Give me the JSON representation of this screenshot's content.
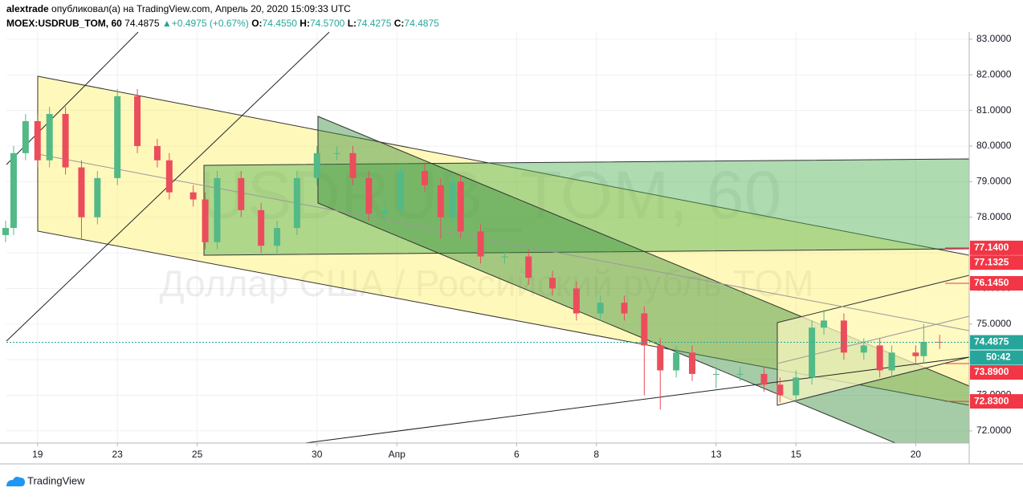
{
  "header": {
    "user": "alextrade",
    "published": "опубликовал(а) на TradingView.com, Апрель 20, 2020 15:09:33 UTC",
    "symbol": "MOEX:USDRUB_TOM, 60",
    "last": "74.4875",
    "arrow": "▲",
    "change": "+0.4975 (+0.67%)",
    "ohlc": [
      {
        "key": "O:",
        "value": "74.4550"
      },
      {
        "key": "H:",
        "value": "74.5700"
      },
      {
        "key": "L:",
        "value": "74.4275"
      },
      {
        "key": "C:",
        "value": "74.4875"
      }
    ]
  },
  "chart_data": {
    "type": "candlestick",
    "watermark": [
      "USDRUB_TOM, 60",
      "Доллар США / Российский рубль TOM"
    ],
    "up_color": "#53b987",
    "down_color": "#eb4d5c",
    "grid": true,
    "xlim": [
      -0.78,
      23.34
    ],
    "ylim": [
      71.66,
      83.2
    ],
    "xticks": [
      {
        "value": 0,
        "label": "19"
      },
      {
        "value": 2,
        "label": "23"
      },
      {
        "value": 4,
        "label": "25"
      },
      {
        "value": 7,
        "label": "30"
      },
      {
        "value": 9,
        "label": "Апр"
      },
      {
        "value": 12,
        "label": "6"
      },
      {
        "value": 14,
        "label": "8"
      },
      {
        "value": 17,
        "label": "13"
      },
      {
        "value": 19,
        "label": "15"
      },
      {
        "value": 22,
        "label": "20"
      }
    ],
    "yticks": [
      {
        "value": 72,
        "label": "72.0000"
      },
      {
        "value": 73,
        "label": "73.0000"
      },
      {
        "value": 74,
        "label": "74.0000"
      },
      {
        "value": 75,
        "label": "75.0000"
      },
      {
        "value": 76,
        "label": "76.0000"
      },
      {
        "value": 77,
        "label": "77.0000"
      },
      {
        "value": 78,
        "label": "78.0000"
      },
      {
        "value": 79,
        "label": "79.0000"
      },
      {
        "value": 80,
        "label": "80.0000"
      },
      {
        "value": 81,
        "label": "81.0000"
      },
      {
        "value": 82,
        "label": "82.0000"
      },
      {
        "value": 83,
        "label": "83.0000"
      }
    ],
    "x": [
      -0.8,
      -0.6,
      -0.3,
      0,
      0.3,
      0.7,
      1.1,
      1.5,
      2.0,
      2.5,
      3.0,
      3.3,
      3.9,
      4.2,
      4.5,
      5.1,
      5.6,
      6.0,
      6.5,
      7.0,
      7.5,
      7.9,
      8.3,
      8.7,
      9.1,
      9.7,
      10.1,
      10.4,
      10.6,
      11.1,
      11.7,
      12.3,
      12.9,
      13.5,
      14.1,
      14.7,
      15.2,
      15.6,
      16.0,
      16.4,
      17.0,
      17.6,
      18.2,
      18.6,
      19.0,
      19.4,
      19.7,
      20.2,
      20.7,
      21.1,
      21.4,
      22.0,
      22.2,
      22.6
    ],
    "open": [
      77.5,
      77.7,
      79.8,
      80.7,
      79.6,
      80.9,
      79.4,
      78.0,
      79.1,
      81.4,
      80.0,
      79.6,
      78.7,
      78.5,
      77.3,
      79.1,
      78.2,
      77.2,
      77.7,
      79.1,
      79.8,
      79.8,
      79.1,
      78.1,
      78.2,
      79.3,
      78.9,
      78.0,
      79.0,
      77.6,
      76.9,
      76.9,
      76.3,
      76.0,
      75.3,
      75.6,
      75.3,
      74.4,
      73.7,
      74.2,
      73.6,
      73.6,
      73.6,
      73.3,
      73.0,
      73.5,
      74.9,
      75.1,
      74.2,
      74.4,
      73.7,
      74.2,
      74.1,
      74.5
    ],
    "high": [
      77.9,
      80.0,
      80.9,
      80.9,
      81.1,
      81.1,
      79.6,
      79.3,
      81.6,
      81.6,
      80.2,
      79.8,
      78.9,
      78.7,
      79.3,
      79.3,
      78.4,
      77.9,
      79.3,
      80.0,
      80.0,
      80.0,
      79.3,
      78.4,
      79.5,
      79.5,
      79.1,
      79.2,
      79.2,
      77.8,
      77.1,
      77.1,
      76.5,
      76.2,
      75.8,
      75.8,
      75.5,
      74.6,
      74.4,
      74.4,
      73.8,
      73.8,
      73.8,
      73.5,
      73.7,
      75.1,
      75.4,
      75.3,
      74.6,
      74.6,
      74.4,
      74.4,
      75.0,
      74.7
    ],
    "low": [
      77.3,
      77.5,
      79.6,
      79.4,
      79.4,
      79.2,
      77.4,
      77.8,
      78.9,
      79.8,
      79.4,
      78.5,
      78.3,
      77.1,
      77.1,
      78.0,
      77.0,
      77.0,
      77.5,
      78.9,
      79.6,
      78.9,
      77.9,
      77.9,
      78.0,
      78.7,
      77.4,
      77.8,
      77.4,
      76.7,
      76.7,
      76.1,
      75.8,
      75.1,
      75.1,
      75.1,
      73.0,
      72.6,
      73.5,
      73.4,
      73.2,
      73.4,
      73.1,
      72.8,
      72.8,
      73.3,
      74.7,
      74.0,
      74.0,
      73.5,
      73.5,
      73.9,
      73.9,
      74.3
    ],
    "close": [
      77.7,
      79.8,
      80.7,
      79.6,
      80.9,
      79.4,
      78.0,
      79.1,
      81.4,
      80.0,
      79.6,
      78.7,
      78.5,
      77.3,
      79.1,
      78.2,
      77.2,
      77.7,
      79.1,
      79.8,
      79.8,
      79.1,
      78.1,
      78.2,
      79.3,
      78.9,
      78.0,
      79.0,
      77.6,
      76.9,
      76.9,
      76.3,
      76.0,
      75.3,
      75.6,
      75.3,
      74.4,
      73.7,
      74.2,
      73.6,
      73.6,
      73.6,
      73.3,
      73.0,
      73.5,
      74.9,
      75.1,
      74.2,
      74.4,
      73.7,
      74.2,
      74.1,
      74.5,
      74.4875
    ],
    "last_price": {
      "value": 74.4875,
      "label": "74.4875",
      "color": "#26a69a"
    },
    "countdown": "50:42",
    "price_tags": [
      {
        "value": 77.14,
        "label": "77.1400",
        "color": "#f23645"
      },
      {
        "value": 77.1325,
        "label": "77.1325",
        "color": "#f23645"
      },
      {
        "value": 76.145,
        "label": "76.1450",
        "color": "#f23645"
      },
      {
        "value": 73.89,
        "label": "73.8900",
        "color": "#f23645"
      },
      {
        "value": 72.83,
        "label": "72.8300",
        "color": "#f23645"
      }
    ]
  },
  "footer": {
    "brand": "TradingView"
  }
}
